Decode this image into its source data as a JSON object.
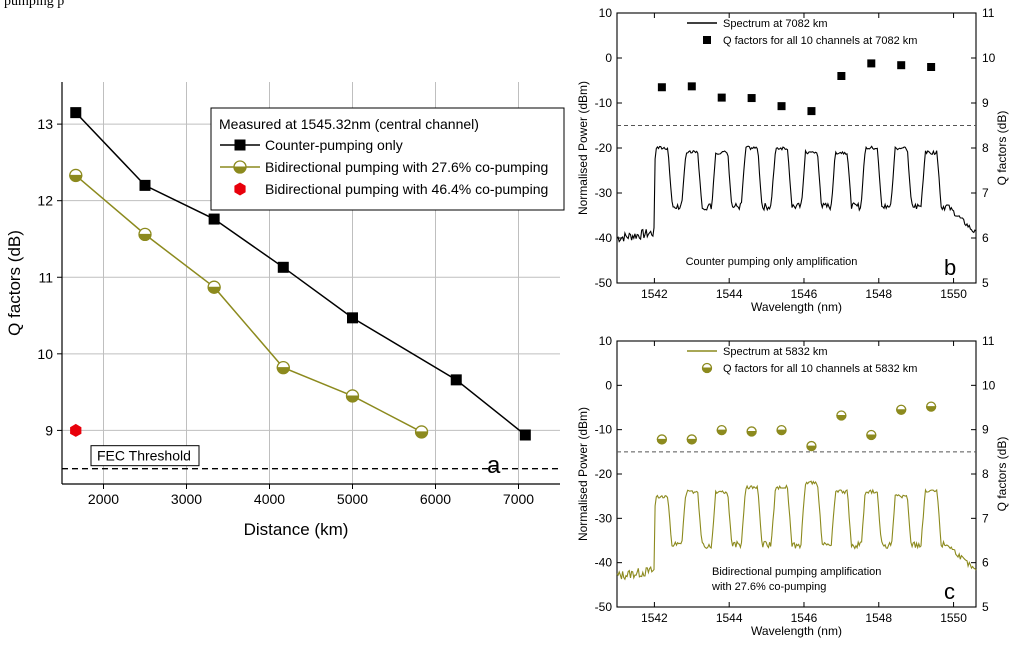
{
  "caption_fragment": "pumping p",
  "colors": {
    "black_series": "#000000",
    "olive_series": "#8c8a1e",
    "red_marker": "#e8000b",
    "grid": "#bfbfbf",
    "threshold": "#555555"
  },
  "chart_data": [
    {
      "type": "line",
      "panel_label": "a",
      "xlabel": "Distance (km)",
      "ylabel": "Q factors (dB)",
      "xlim": [
        1500,
        7500
      ],
      "ylim": [
        8.3,
        13.55
      ],
      "xticks": [
        2000,
        3000,
        4000,
        5000,
        6000,
        7000
      ],
      "yticks": [
        9,
        10,
        11,
        12,
        13
      ],
      "grid": true,
      "legend_title": "Measured at 1545.32nm (central channel)",
      "legend_position": "top-right",
      "series": [
        {
          "name": "Counter-pumping only",
          "marker": "square",
          "color": "#000000",
          "x": [
            1666,
            2500,
            3333,
            4166,
            5000,
            6250,
            7082
          ],
          "y": [
            13.15,
            12.2,
            11.76,
            11.13,
            10.47,
            9.66,
            8.94
          ]
        },
        {
          "name": "Bidirectional pumping with 27.6% co-pumping",
          "marker": "half-circle",
          "color": "#8c8a1e",
          "x": [
            1666,
            2500,
            3333,
            4166,
            5000,
            5832
          ],
          "y": [
            12.33,
            11.56,
            10.87,
            9.82,
            9.45,
            8.98
          ]
        },
        {
          "name": "Bidirectional pumping with 46.4% co-pumping",
          "marker": "hexagon",
          "color": "#e8000b",
          "x": [
            1666
          ],
          "y": [
            9.0
          ]
        }
      ],
      "threshold": {
        "label": "FEC Threshold",
        "value": 8.5
      }
    },
    {
      "type": "line",
      "panel_label": "b",
      "xlabel": "Wavelength (nm)",
      "ylabel": "Normalised Power (dBm)",
      "y2label": "Q factors (dB)",
      "xlim": [
        1541,
        1550.6
      ],
      "ylim": [
        -50,
        10
      ],
      "y2lim": [
        5,
        11
      ],
      "xticks": [
        1542,
        1544,
        1546,
        1548,
        1550
      ],
      "yticks": [
        -50,
        -40,
        -30,
        -20,
        -10,
        0,
        10
      ],
      "y2ticks": [
        5,
        6,
        7,
        8,
        9,
        10,
        11
      ],
      "annotation": "Counter pumping only amplification",
      "legend_position": "top",
      "spectrum": {
        "name": "Spectrum at 7082 km",
        "color": "#000000",
        "floor": -40,
        "channel_centers": [
          1542.2,
          1543.0,
          1543.8,
          1544.6,
          1545.4,
          1546.2,
          1547.0,
          1547.8,
          1548.6,
          1549.4
        ],
        "peaks": [
          -20,
          -21,
          -21,
          -20,
          -20,
          -21,
          -21,
          -20,
          -20,
          -21
        ],
        "valley": -33
      },
      "q_factors": {
        "name": "Q factors for all 10 channels at 7082 km",
        "marker": "square",
        "color": "#000000",
        "x": [
          1542.2,
          1543.0,
          1543.8,
          1544.6,
          1545.4,
          1546.2,
          1547.0,
          1547.8,
          1548.6,
          1549.4
        ],
        "y": [
          9.35,
          9.37,
          9.12,
          9.11,
          8.93,
          8.82,
          9.6,
          9.88,
          9.84,
          9.8
        ]
      },
      "q_threshold": 8.5
    },
    {
      "type": "line",
      "panel_label": "c",
      "xlabel": "Wavelength (nm)",
      "ylabel": "Normalised Power (dBm)",
      "y2label": "Q factors (dB)",
      "xlim": [
        1541,
        1550.6
      ],
      "ylim": [
        -50,
        10
      ],
      "y2lim": [
        5,
        11
      ],
      "xticks": [
        1542,
        1544,
        1546,
        1548,
        1550
      ],
      "yticks": [
        -50,
        -40,
        -30,
        -20,
        -10,
        0,
        10
      ],
      "y2ticks": [
        5,
        6,
        7,
        8,
        9,
        10,
        11
      ],
      "annotation_lines": [
        "Bidirectional pumping amplification",
        "with 27.6% co-pumping"
      ],
      "legend_position": "top",
      "spectrum": {
        "name": "Spectrum at 5832 km",
        "color": "#8c8a1e",
        "floor": -43,
        "channel_centers": [
          1542.2,
          1543.0,
          1543.8,
          1544.6,
          1545.4,
          1546.2,
          1547.0,
          1547.8,
          1548.6,
          1549.4
        ],
        "peaks": [
          -25,
          -24,
          -24,
          -23,
          -23,
          -22,
          -24,
          -24,
          -25,
          -24
        ],
        "valley": -36
      },
      "q_factors": {
        "name": "Q factors for all 10 channels at 5832 km",
        "marker": "half-circle",
        "color": "#8c8a1e",
        "x": [
          1542.2,
          1543.0,
          1543.8,
          1544.6,
          1545.4,
          1546.2,
          1547.0,
          1547.8,
          1548.6,
          1549.4
        ],
        "y": [
          8.78,
          8.78,
          8.99,
          8.96,
          8.99,
          8.63,
          9.32,
          8.88,
          9.45,
          9.52
        ]
      },
      "q_threshold": 8.5
    }
  ]
}
